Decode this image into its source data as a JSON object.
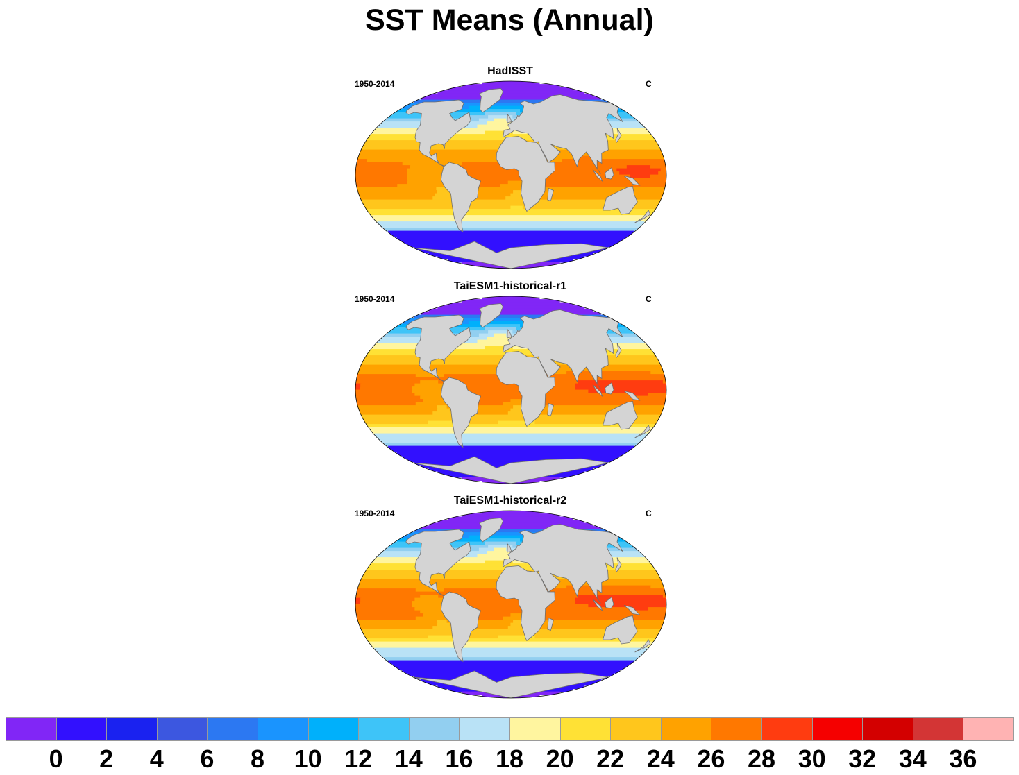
{
  "figure": {
    "title": "SST Means (Annual)"
  },
  "panels": [
    {
      "title": "HadISST",
      "period": "1950-2014",
      "units": "C"
    },
    {
      "title": "TaiESM1-historical-r1",
      "period": "1950-2014",
      "units": "C"
    },
    {
      "title": "TaiESM1-historical-r2",
      "period": "1950-2014",
      "units": "C"
    }
  ],
  "colorbar": {
    "colors": [
      "#8126f6",
      "#3210fe",
      "#1a22f0",
      "#3c57e0",
      "#2c78f2",
      "#1a94fe",
      "#00b0fb",
      "#3ec4f8",
      "#92cff0",
      "#b9e2f6",
      "#fff59f",
      "#ffe135",
      "#ffc61c",
      "#ffa200",
      "#ff7800",
      "#ff3c10",
      "#f50000",
      "#d30000",
      "#d33535",
      "#ffb3b3"
    ],
    "labels": [
      "0",
      "2",
      "4",
      "6",
      "8",
      "10",
      "12",
      "14",
      "16",
      "18",
      "20",
      "22",
      "24",
      "26",
      "28",
      "30",
      "32",
      "34",
      "36"
    ]
  },
  "chart_data": {
    "type": "heatmap",
    "title": "SST Means (Annual)",
    "variable": "Sea surface temperature",
    "units": "C",
    "period": "1950-2014",
    "projection": "Robinson (global)",
    "panels": [
      "HadISST",
      "TaiESM1-historical-r1",
      "TaiESM1-historical-r2"
    ],
    "colorbar_levels": [
      0,
      2,
      4,
      6,
      8,
      10,
      12,
      14,
      16,
      18,
      20,
      22,
      24,
      26,
      28,
      30,
      32,
      34,
      36
    ],
    "land_color": "#d4d4d4"
  }
}
